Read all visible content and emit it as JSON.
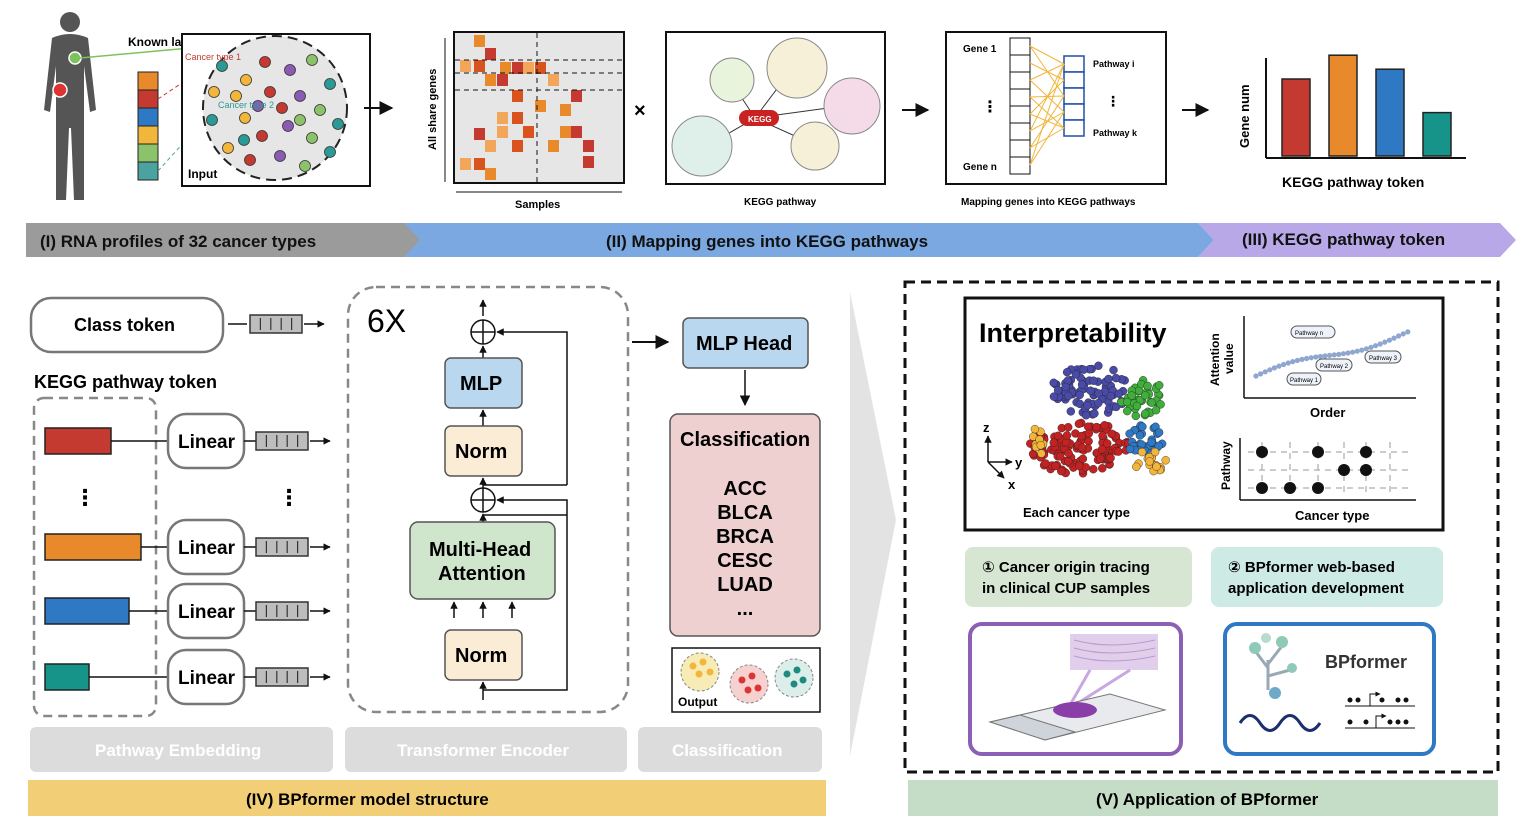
{
  "top": {
    "known_labels": "Known labels",
    "cancer_type_1": "Cancer type 1",
    "cancer_type_2": "Cancer type 2",
    "input": "Input",
    "all_share_genes": "All share genes",
    "samples": "Samples",
    "times": "×",
    "kegg_badge": "KEGG",
    "kegg_pathway": "KEGG pathway",
    "gene_1": "Gene 1",
    "gene_n": "Gene n",
    "pathway_i": "Pathway i",
    "pathway_k": "Pathway k",
    "mapping_caption": "Mapping genes into KEGG pathways",
    "gene_num": "Gene num",
    "kegg_token_caption": "KEGG pathway token",
    "bars": [
      {
        "value": 0.55,
        "color": "#c43a31"
      },
      {
        "value": 0.72,
        "color": "#e8892c"
      },
      {
        "value": 0.62,
        "color": "#2f78c4"
      },
      {
        "value": 0.31,
        "color": "#16948a"
      }
    ]
  },
  "banners": {
    "stage_1": "(I)  RNA profiles of 32 cancer types",
    "stage_2": "(II) Mapping genes into KEGG pathways",
    "stage_3": "(III) KEGG pathway token"
  },
  "model": {
    "class_token": "Class token",
    "kegg_pathway_token": "KEGG pathway token",
    "linear": "Linear",
    "six_x": "6X",
    "mlp": "MLP",
    "norm": "Norm",
    "multi_head_1": "Multi-Head",
    "multi_head_2": "Attention",
    "mlp_head": "MLP Head",
    "classification_title": "Classification",
    "classes": [
      "ACC",
      "BLCA",
      "BRCA",
      "CESC",
      "LUAD",
      "..."
    ],
    "output": "Output",
    "footer_embedding": "Pathway Embedding",
    "footer_encoder": "Transformer Encoder",
    "footer_classification": "Classification",
    "stage_4": "(IV) BPformer model structure",
    "token_colors": [
      "#c43a31",
      "#e8892c",
      "#2f78c4",
      "#16948a"
    ]
  },
  "application": {
    "interpretability": "Interpretability",
    "attention_value_1": "Attention",
    "attention_value_2": "value",
    "order": "Order",
    "pathway_n": "Pathway n",
    "pathway_1": "Pathway 1",
    "pathway_2": "Pathway 2",
    "pathway_3": "Pathway 3",
    "pathway_axis": "Pathway",
    "cancer_type_axis": "Cancer type",
    "each_cancer_type": "Each cancer type",
    "axis_z": "z",
    "axis_y": "y",
    "axis_x": "x",
    "app1_line1": "① Cancer origin tracing",
    "app1_line2": "in clinical CUP samples",
    "app2_line1": "② BPformer web-based",
    "app2_line2": "application development",
    "bpformer_logo": "BPformer",
    "stage_5": "(V) Application of BPformer"
  }
}
